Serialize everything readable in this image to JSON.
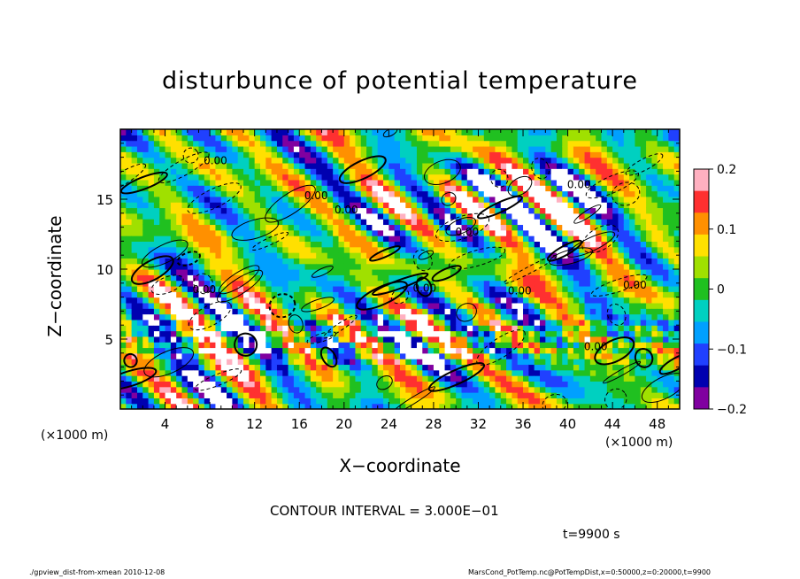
{
  "chart_data": {
    "type": "heatmap",
    "title": "disturbunce of potential temperature",
    "xlabel": "X−coordinate",
    "ylabel": "Z−coordinate",
    "x_unit_left": "(×1000 m)",
    "x_unit_right": "(×1000 m)",
    "xlim": [
      0,
      50
    ],
    "ylim": [
      0,
      20
    ],
    "x_ticks": [
      4,
      8,
      12,
      16,
      20,
      24,
      28,
      32,
      36,
      40,
      44,
      48
    ],
    "y_ticks": [
      5,
      10,
      15
    ],
    "colorbar": {
      "min": -0.2,
      "max": 0.2,
      "tick_values": [
        0.2,
        0.1,
        0,
        -0.1,
        -0.2
      ],
      "tick_labels": [
        "0.2",
        "0.1",
        "0",
        "−0.1",
        "−0.2"
      ],
      "colors": [
        "#ffb0c0",
        "#ff3030",
        "#ff9000",
        "#ffe000",
        "#a0e000",
        "#20c020",
        "#00d0c0",
        "#00a0ff",
        "#2040ff",
        "#0000b0",
        "#8000a0"
      ]
    },
    "contour_labels": [
      "0.00",
      "0.00",
      "0.00",
      "0.00",
      "0.00",
      "0.00",
      "0.00",
      "0.00",
      "0.00",
      "0.00"
    ],
    "contour_interval_text": "CONTOUR INTERVAL = 3.000E−01",
    "time_text": "t=9900 s"
  },
  "footer": {
    "left": "./gpview_dist-from-xmean  2010-12-08",
    "right": "MarsCond_PotTemp.nc@PotTempDist,x=0:50000,z=0:20000,t=9900"
  }
}
